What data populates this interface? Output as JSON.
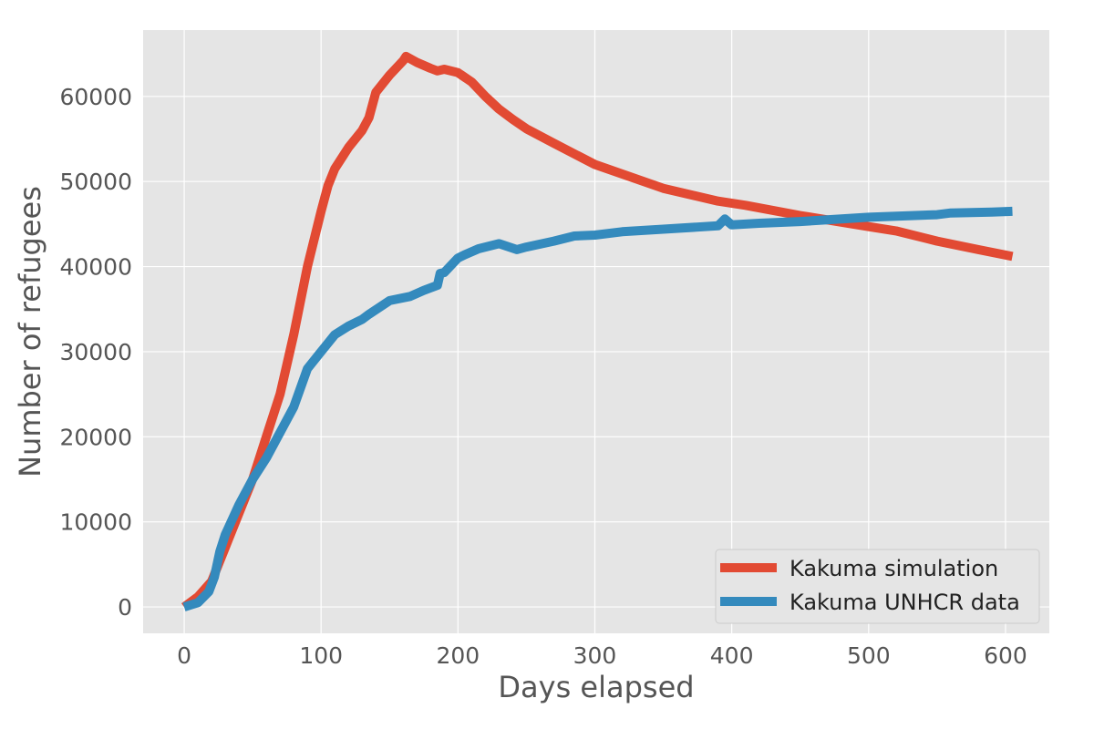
{
  "chart_data": {
    "type": "line",
    "xlabel": "Days elapsed",
    "ylabel": "Number of refugees",
    "xlim": [
      -30,
      632
    ],
    "ylim": [
      -3100,
      67800
    ],
    "xticks": [
      0,
      100,
      200,
      300,
      400,
      500,
      600
    ],
    "yticks": [
      0,
      10000,
      20000,
      30000,
      40000,
      50000,
      60000
    ],
    "grid": true,
    "legend_position": "lower-right",
    "background": "#e5e5e5",
    "series": [
      {
        "name": "Kakuma simulation",
        "color": "#e24a33",
        "x": [
          0,
          10,
          20,
          30,
          40,
          50,
          60,
          70,
          80,
          90,
          100,
          105,
          110,
          120,
          130,
          135,
          140,
          150,
          160,
          162,
          170,
          180,
          185,
          190,
          200,
          210,
          220,
          230,
          240,
          250,
          270,
          300,
          350,
          390,
          410,
          450,
          500,
          520,
          550,
          580,
          605
        ],
        "y": [
          0,
          1200,
          3000,
          7000,
          11000,
          15000,
          20000,
          25000,
          32000,
          40000,
          46500,
          49500,
          51500,
          54000,
          56000,
          57500,
          60500,
          62500,
          64200,
          64700,
          64000,
          63300,
          63000,
          63200,
          62800,
          61700,
          60000,
          58500,
          57300,
          56200,
          54500,
          52000,
          49200,
          47700,
          47200,
          46000,
          44700,
          44200,
          43000,
          42000,
          41200
        ]
      },
      {
        "name": "Kakuma UNHCR data",
        "color": "#348abd",
        "x": [
          0,
          10,
          18,
          22,
          26,
          30,
          40,
          50,
          60,
          70,
          80,
          90,
          100,
          105,
          110,
          120,
          130,
          135,
          150,
          165,
          175,
          185,
          187,
          190,
          200,
          205,
          215,
          230,
          243,
          250,
          270,
          285,
          300,
          320,
          350,
          390,
          395,
          400,
          420,
          450,
          500,
          550,
          560,
          590,
          605
        ],
        "y": [
          0,
          500,
          1800,
          3500,
          6500,
          8500,
          12000,
          15000,
          17500,
          20500,
          23500,
          28000,
          30000,
          31000,
          32000,
          33000,
          33800,
          34400,
          36000,
          36500,
          37200,
          37800,
          39200,
          39300,
          41000,
          41400,
          42100,
          42700,
          42000,
          42300,
          43000,
          43600,
          43700,
          44100,
          44400,
          44800,
          45600,
          44900,
          45100,
          45300,
          45800,
          46100,
          46300,
          46400,
          46500
        ]
      }
    ]
  }
}
